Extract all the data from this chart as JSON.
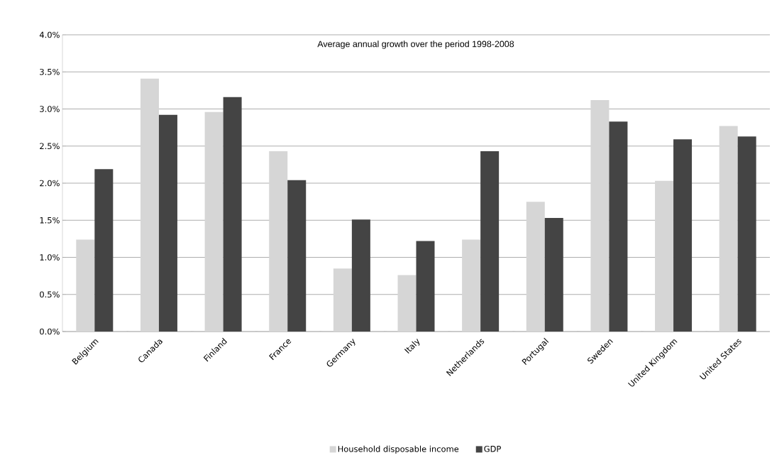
{
  "chart_data": {
    "type": "bar",
    "title": "Average annual growth over the period 1998-2008",
    "categories": [
      "Belgium",
      "Canada",
      "Finland",
      "France",
      "Germany",
      "Italy",
      "Netherlands",
      "Portugal",
      "Sweden",
      "United Kingdom",
      "United States"
    ],
    "series": [
      {
        "name": "Household disposable income",
        "color": "#d6d6d6",
        "values": [
          1.24,
          3.41,
          2.96,
          2.43,
          0.85,
          0.76,
          1.24,
          1.75,
          3.12,
          2.03,
          2.77
        ]
      },
      {
        "name": "GDP",
        "color": "#444444",
        "values": [
          2.19,
          2.92,
          3.16,
          2.04,
          1.51,
          1.22,
          2.43,
          1.53,
          2.83,
          2.59,
          2.63
        ]
      }
    ],
    "ylim": [
      0,
      4
    ],
    "yticks": [
      {
        "value": 0,
        "label": "0.0%"
      },
      {
        "value": 0.5,
        "label": "0.5%"
      },
      {
        "value": 1,
        "label": "1.0%"
      },
      {
        "value": 1.5,
        "label": "1.5%"
      },
      {
        "value": 2,
        "label": "2.0%"
      },
      {
        "value": 2.5,
        "label": "2.5%"
      },
      {
        "value": 3,
        "label": "3.0%"
      },
      {
        "value": 3.5,
        "label": "3.5%"
      },
      {
        "value": 4,
        "label": "4.0%"
      }
    ],
    "grid": "y",
    "legend": "bottom"
  }
}
